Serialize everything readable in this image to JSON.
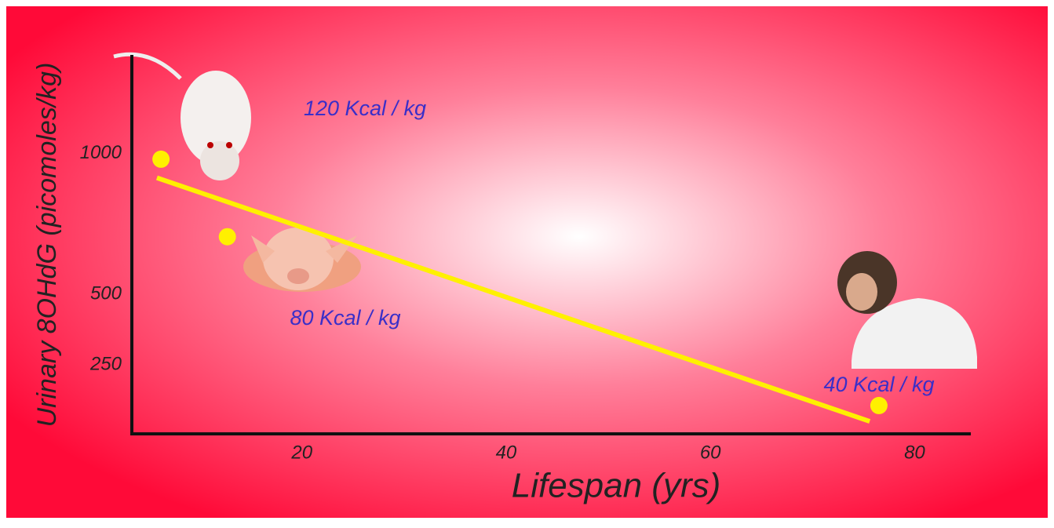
{
  "chart_data": {
    "type": "scatter",
    "x_label": "Lifespan  (yrs)",
    "y_label": "Urinary 8OHdG (picomoles/kg)",
    "x": [
      6.2,
      12.7,
      76.5
    ],
    "values": [
      980,
      705,
      106
    ],
    "color": "#fff000",
    "trendline": {
      "x": [
        5.8,
        75.6
      ],
      "values": [
        914,
        50
      ],
      "color": "#fff000"
    },
    "annotations": [
      "120 Kcal / kg",
      "80 Kcal / kg",
      "40 Kcal / kg"
    ],
    "xlim": [
      3.5,
      85.5
    ],
    "xticks": [
      20,
      40,
      60,
      80
    ],
    "ylim": [
      0,
      1350
    ],
    "yticks": [
      250,
      500,
      1000
    ],
    "grid": false
  }
}
